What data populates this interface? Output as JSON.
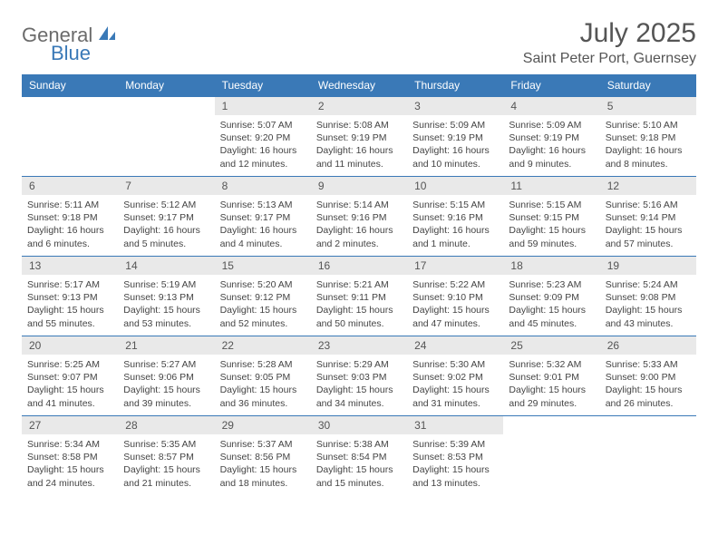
{
  "logo": {
    "part1": "General",
    "part2": "Blue"
  },
  "title": "July 2025",
  "location": "Saint Peter Port, Guernsey",
  "header_bg": "#3a79b7",
  "daynames": [
    "Sunday",
    "Monday",
    "Tuesday",
    "Wednesday",
    "Thursday",
    "Friday",
    "Saturday"
  ],
  "weeks": [
    [
      null,
      null,
      {
        "n": "1",
        "sunrise": "5:07 AM",
        "sunset": "9:20 PM",
        "daylight": "16 hours and 12 minutes."
      },
      {
        "n": "2",
        "sunrise": "5:08 AM",
        "sunset": "9:19 PM",
        "daylight": "16 hours and 11 minutes."
      },
      {
        "n": "3",
        "sunrise": "5:09 AM",
        "sunset": "9:19 PM",
        "daylight": "16 hours and 10 minutes."
      },
      {
        "n": "4",
        "sunrise": "5:09 AM",
        "sunset": "9:19 PM",
        "daylight": "16 hours and 9 minutes."
      },
      {
        "n": "5",
        "sunrise": "5:10 AM",
        "sunset": "9:18 PM",
        "daylight": "16 hours and 8 minutes."
      }
    ],
    [
      {
        "n": "6",
        "sunrise": "5:11 AM",
        "sunset": "9:18 PM",
        "daylight": "16 hours and 6 minutes."
      },
      {
        "n": "7",
        "sunrise": "5:12 AM",
        "sunset": "9:17 PM",
        "daylight": "16 hours and 5 minutes."
      },
      {
        "n": "8",
        "sunrise": "5:13 AM",
        "sunset": "9:17 PM",
        "daylight": "16 hours and 4 minutes."
      },
      {
        "n": "9",
        "sunrise": "5:14 AM",
        "sunset": "9:16 PM",
        "daylight": "16 hours and 2 minutes."
      },
      {
        "n": "10",
        "sunrise": "5:15 AM",
        "sunset": "9:16 PM",
        "daylight": "16 hours and 1 minute."
      },
      {
        "n": "11",
        "sunrise": "5:15 AM",
        "sunset": "9:15 PM",
        "daylight": "15 hours and 59 minutes."
      },
      {
        "n": "12",
        "sunrise": "5:16 AM",
        "sunset": "9:14 PM",
        "daylight": "15 hours and 57 minutes."
      }
    ],
    [
      {
        "n": "13",
        "sunrise": "5:17 AM",
        "sunset": "9:13 PM",
        "daylight": "15 hours and 55 minutes."
      },
      {
        "n": "14",
        "sunrise": "5:19 AM",
        "sunset": "9:13 PM",
        "daylight": "15 hours and 53 minutes."
      },
      {
        "n": "15",
        "sunrise": "5:20 AM",
        "sunset": "9:12 PM",
        "daylight": "15 hours and 52 minutes."
      },
      {
        "n": "16",
        "sunrise": "5:21 AM",
        "sunset": "9:11 PM",
        "daylight": "15 hours and 50 minutes."
      },
      {
        "n": "17",
        "sunrise": "5:22 AM",
        "sunset": "9:10 PM",
        "daylight": "15 hours and 47 minutes."
      },
      {
        "n": "18",
        "sunrise": "5:23 AM",
        "sunset": "9:09 PM",
        "daylight": "15 hours and 45 minutes."
      },
      {
        "n": "19",
        "sunrise": "5:24 AM",
        "sunset": "9:08 PM",
        "daylight": "15 hours and 43 minutes."
      }
    ],
    [
      {
        "n": "20",
        "sunrise": "5:25 AM",
        "sunset": "9:07 PM",
        "daylight": "15 hours and 41 minutes."
      },
      {
        "n": "21",
        "sunrise": "5:27 AM",
        "sunset": "9:06 PM",
        "daylight": "15 hours and 39 minutes."
      },
      {
        "n": "22",
        "sunrise": "5:28 AM",
        "sunset": "9:05 PM",
        "daylight": "15 hours and 36 minutes."
      },
      {
        "n": "23",
        "sunrise": "5:29 AM",
        "sunset": "9:03 PM",
        "daylight": "15 hours and 34 minutes."
      },
      {
        "n": "24",
        "sunrise": "5:30 AM",
        "sunset": "9:02 PM",
        "daylight": "15 hours and 31 minutes."
      },
      {
        "n": "25",
        "sunrise": "5:32 AM",
        "sunset": "9:01 PM",
        "daylight": "15 hours and 29 minutes."
      },
      {
        "n": "26",
        "sunrise": "5:33 AM",
        "sunset": "9:00 PM",
        "daylight": "15 hours and 26 minutes."
      }
    ],
    [
      {
        "n": "27",
        "sunrise": "5:34 AM",
        "sunset": "8:58 PM",
        "daylight": "15 hours and 24 minutes."
      },
      {
        "n": "28",
        "sunrise": "5:35 AM",
        "sunset": "8:57 PM",
        "daylight": "15 hours and 21 minutes."
      },
      {
        "n": "29",
        "sunrise": "5:37 AM",
        "sunset": "8:56 PM",
        "daylight": "15 hours and 18 minutes."
      },
      {
        "n": "30",
        "sunrise": "5:38 AM",
        "sunset": "8:54 PM",
        "daylight": "15 hours and 15 minutes."
      },
      {
        "n": "31",
        "sunrise": "5:39 AM",
        "sunset": "8:53 PM",
        "daylight": "15 hours and 13 minutes."
      },
      null,
      null
    ]
  ],
  "labels": {
    "sunrise": "Sunrise: ",
    "sunset": "Sunset: ",
    "daylight": "Daylight: "
  }
}
